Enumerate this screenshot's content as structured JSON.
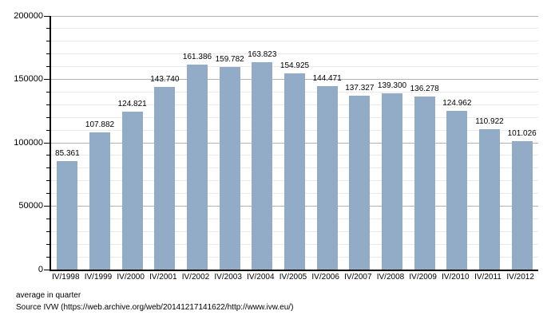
{
  "chart_data": {
    "type": "bar",
    "title": "",
    "xlabel": "",
    "ylabel": "",
    "categories": [
      "IV/1998",
      "IV/1999",
      "IV/2000",
      "IV/2001",
      "IV/2002",
      "IV/2003",
      "IV/2004",
      "IV/2005",
      "IV/2006",
      "IV/2007",
      "IV/2008",
      "IV/2009",
      "IV/2010",
      "IV/2011",
      "IV/2012"
    ],
    "values": [
      85361,
      107882,
      124821,
      143740,
      161386,
      159782,
      163823,
      154925,
      144471,
      137327,
      139300,
      136278,
      124962,
      110922,
      101026
    ],
    "value_labels": [
      "85.361",
      "107.882",
      "124.821",
      "143.740",
      "161.386",
      "159.782",
      "163.823",
      "154.925",
      "144.471",
      "137.327",
      "139.300",
      "136.278",
      "124.962",
      "110.922",
      "101.026"
    ],
    "ylim": [
      0,
      200000
    ],
    "y_major_step": 50000,
    "y_minor_step": 10000,
    "y_tick_labels": [
      "0",
      "50000",
      "100000",
      "150000",
      "200000"
    ],
    "grid": "on",
    "legend": "none",
    "bar_color": "#92abc6",
    "major_grid_color": "#b2b2b2",
    "minor_grid_color": "#eaeaea",
    "axis_color": "#000000"
  },
  "footer": {
    "note": "average in quarter",
    "source": "Source IVW (https://web.archive.org/web/20141217141622/http://www.ivw.eu/)"
  }
}
